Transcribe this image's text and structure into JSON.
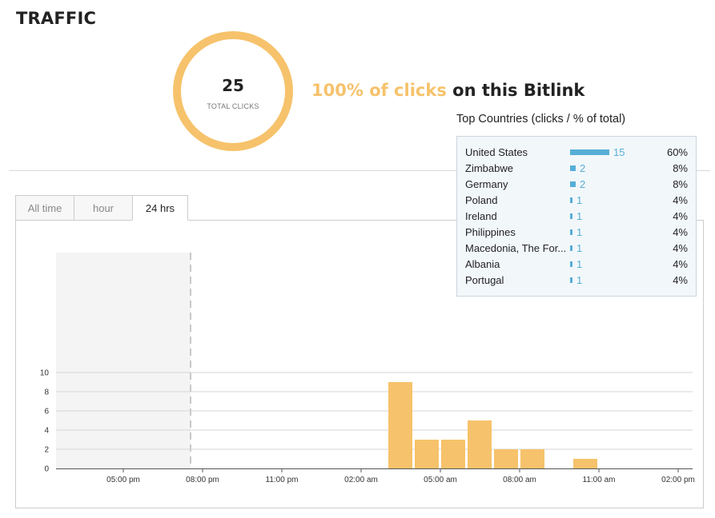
{
  "header": {
    "title": "TRAFFIC"
  },
  "summary": {
    "total_clicks": "25",
    "total_clicks_label": "TOTAL CLICKS",
    "headline_highlight": "100% of clicks",
    "headline_rest": " on this Bitlink",
    "ring_color": "#f6c26b"
  },
  "countries": {
    "title": "Top Countries (clicks / % of total)",
    "bar_color": "#56aed6",
    "max_clicks": 15,
    "rows": [
      {
        "name": "United States",
        "clicks": 15,
        "count": "15",
        "pct": "60%"
      },
      {
        "name": "Zimbabwe",
        "clicks": 2,
        "count": "2",
        "pct": "8%"
      },
      {
        "name": "Germany",
        "clicks": 2,
        "count": "2",
        "pct": "8%"
      },
      {
        "name": "Poland",
        "clicks": 1,
        "count": "1",
        "pct": "4%"
      },
      {
        "name": "Ireland",
        "clicks": 1,
        "count": "1",
        "pct": "4%"
      },
      {
        "name": "Philippines",
        "clicks": 1,
        "count": "1",
        "pct": "4%"
      },
      {
        "name": "Macedonia, The For...",
        "clicks": 1,
        "count": "1",
        "pct": "4%"
      },
      {
        "name": "Albania",
        "clicks": 1,
        "count": "1",
        "pct": "4%"
      },
      {
        "name": "Portugal",
        "clicks": 1,
        "count": "1",
        "pct": "4%"
      }
    ]
  },
  "tabs": [
    {
      "label": "All time",
      "active": false
    },
    {
      "label": "hour",
      "active": false
    },
    {
      "label": "24 hrs",
      "active": true
    }
  ],
  "chart_data": {
    "type": "bar",
    "title": "",
    "xlabel": "",
    "ylabel": "",
    "bar_color": "#f6c26b",
    "ylim": [
      0,
      11
    ],
    "yticks": [
      0,
      2,
      4,
      6,
      8,
      10
    ],
    "x_range_hours": [
      14,
      39
    ],
    "x_ticks": [
      {
        "hour": 17,
        "label": "05:00 pm"
      },
      {
        "hour": 20,
        "label": "08:00 pm"
      },
      {
        "hour": 23,
        "label": "11:00 pm"
      },
      {
        "hour": 26,
        "label": "02:00 am"
      },
      {
        "hour": 29,
        "label": "05:00 am"
      },
      {
        "hour": 32,
        "label": "08:00 am"
      },
      {
        "hour": 35,
        "label": "11:00 am"
      },
      {
        "hour": 38,
        "label": "02:00 pm"
      }
    ],
    "no_data_until_hour": 19,
    "bars": [
      {
        "hour": 28,
        "value": 9
      },
      {
        "hour": 29,
        "value": 3
      },
      {
        "hour": 30,
        "value": 3
      },
      {
        "hour": 31,
        "value": 5
      },
      {
        "hour": 32,
        "value": 2
      },
      {
        "hour": 33,
        "value": 2
      },
      {
        "hour": 35,
        "value": 1
      }
    ],
    "grid": true
  }
}
